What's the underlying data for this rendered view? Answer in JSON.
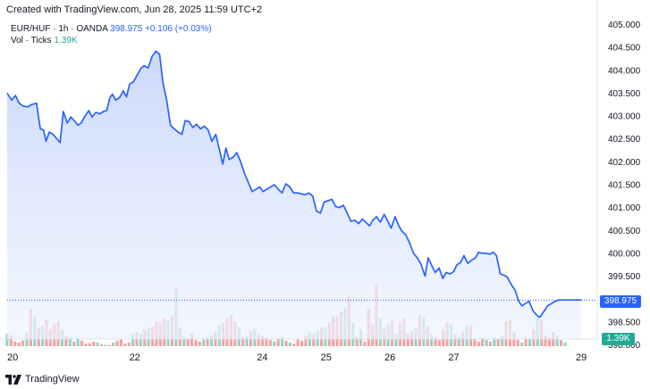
{
  "header": {
    "created_text": "Created with TradingView.com, Jun 28, 2025 11:59 UTC+2"
  },
  "legend": {
    "symbol": "EUR/HUF · 1h · OANDA",
    "price": "398.975",
    "change": "+0.106 (+0.03%)",
    "volume_label": "Vol · Ticks",
    "volume_value": "1.39K"
  },
  "badges": {
    "last_price": "398.975",
    "last_volume": "1.39K"
  },
  "footer": {
    "brand": "TradingView",
    "logo_icon": "tradingview-logo-icon"
  },
  "colors": {
    "line": "#2962ff",
    "area_top": "#c9d7fb",
    "up_volume": "#8fd4c9",
    "down_volume": "#f2a3a3",
    "last_price_badge": "#2962ff",
    "volume_badge": "#22ab94"
  },
  "chart_data": {
    "type": "area",
    "ylim": [
      397.95,
      405.05
    ],
    "x_range": [
      20.0,
      29.25
    ],
    "x_ticks": [
      {
        "value": 20,
        "label": "20"
      },
      {
        "value": 22,
        "label": "22"
      },
      {
        "value": 24,
        "label": "24"
      },
      {
        "value": 25,
        "label": "25"
      },
      {
        "value": 26,
        "label": "26"
      },
      {
        "value": 27,
        "label": "27"
      },
      {
        "value": 29,
        "label": "29"
      }
    ],
    "y_ticks": [
      "405.000",
      "404.500",
      "404.000",
      "403.500",
      "403.000",
      "402.500",
      "402.000",
      "401.500",
      "401.000",
      "400.500",
      "400.000",
      "399.500",
      "398.500",
      "398.000"
    ],
    "series": [
      {
        "name": "EUR/HUF",
        "x": [
          20.0,
          20.07,
          20.13,
          20.19,
          20.25,
          20.32,
          20.38,
          20.46,
          20.52,
          20.57,
          20.61,
          20.66,
          20.72,
          20.78,
          20.83,
          20.88,
          20.94,
          21.0,
          21.05,
          21.11,
          21.16,
          21.22,
          21.28,
          21.33,
          21.39,
          21.45,
          21.51,
          21.56,
          21.61,
          21.65,
          21.7,
          21.76,
          21.82,
          21.87,
          21.92,
          21.98,
          22.04,
          22.1,
          22.15,
          22.21,
          22.27,
          22.33,
          22.39,
          22.44,
          22.5,
          22.56,
          22.62,
          22.68,
          22.74,
          22.79,
          22.85,
          22.91,
          22.97,
          23.03,
          23.09,
          23.15,
          23.21,
          23.27,
          23.33,
          23.38,
          23.43,
          23.48,
          23.54,
          23.6,
          23.66,
          23.72,
          23.78,
          23.84,
          23.9,
          23.96,
          24.01,
          24.07,
          24.13,
          24.19,
          24.25,
          24.31,
          24.37,
          24.43,
          24.49,
          24.55,
          24.61,
          24.67,
          24.73,
          24.79,
          24.85,
          24.91,
          24.97,
          25.03,
          25.09,
          25.15,
          25.21,
          25.27,
          25.33,
          25.39,
          25.45,
          25.51,
          25.57,
          25.62,
          25.68,
          25.73,
          25.79,
          25.85,
          25.91,
          25.96,
          26.02,
          26.08,
          26.14,
          26.19,
          26.25,
          26.31,
          26.37,
          26.43,
          26.49,
          26.55,
          26.6,
          26.65,
          26.71,
          26.77,
          26.83,
          26.88,
          26.94,
          27.0,
          27.05,
          27.11,
          27.16,
          27.22,
          27.28,
          27.34,
          27.39,
          27.45,
          27.51,
          27.56,
          27.62,
          27.67,
          27.73,
          27.79,
          27.84,
          27.9,
          27.96,
          28.02,
          28.07,
          28.12,
          28.18,
          28.24,
          28.3,
          28.35,
          28.41,
          28.47,
          28.53,
          28.59,
          28.65,
          28.71,
          28.76,
          28.82,
          28.88,
          28.94,
          29.0
        ],
        "values": [
          403.5,
          403.35,
          403.45,
          403.28,
          403.22,
          403.2,
          403.25,
          403.28,
          402.72,
          402.7,
          402.45,
          402.65,
          402.6,
          402.5,
          402.42,
          403.1,
          402.85,
          402.98,
          402.9,
          402.8,
          402.85,
          403.0,
          403.12,
          402.98,
          403.08,
          403.05,
          403.1,
          403.12,
          403.4,
          403.48,
          403.35,
          403.4,
          403.55,
          403.42,
          403.7,
          403.75,
          403.9,
          404.05,
          404.1,
          404.05,
          404.3,
          404.42,
          404.35,
          403.75,
          403.35,
          402.8,
          402.72,
          402.65,
          402.6,
          402.9,
          402.88,
          402.75,
          402.82,
          402.72,
          402.78,
          402.7,
          402.45,
          402.6,
          402.25,
          401.95,
          402.3,
          402.05,
          402.1,
          402.2,
          402.0,
          401.75,
          401.55,
          401.35,
          401.4,
          401.45,
          401.35,
          401.4,
          401.45,
          401.5,
          401.4,
          401.32,
          401.52,
          401.45,
          401.32,
          401.32,
          401.3,
          401.28,
          401.32,
          401.25,
          400.92,
          400.88,
          401.12,
          401.15,
          401.18,
          401.02,
          401.0,
          401.05,
          400.88,
          400.7,
          400.72,
          400.65,
          400.75,
          400.68,
          400.6,
          400.72,
          400.8,
          400.68,
          400.85,
          400.72,
          400.55,
          400.8,
          400.6,
          400.48,
          400.4,
          400.22,
          400.0,
          399.9,
          399.75,
          399.5,
          399.9,
          399.75,
          399.58,
          399.68,
          399.45,
          399.58,
          399.55,
          399.6,
          399.75,
          399.8,
          399.95,
          399.78,
          399.85,
          399.9,
          400.02,
          400.0,
          400.0,
          399.98,
          400.02,
          399.95,
          399.55,
          399.52,
          399.48,
          399.32,
          399.2,
          398.95,
          398.85,
          398.9,
          398.95,
          398.75,
          398.65,
          398.6,
          398.72,
          398.85,
          398.9,
          398.95,
          398.98,
          398.98,
          398.98,
          398.98,
          398.98,
          398.98,
          398.98
        ]
      }
    ],
    "volume": {
      "name": "Vol · Ticks",
      "max": 260,
      "values": [
        40,
        35,
        15,
        12,
        18,
        45,
        120,
        95,
        60,
        65,
        85,
        55,
        70,
        80,
        55,
        35,
        30,
        15,
        22,
        18,
        8,
        10,
        14,
        12,
        6,
        5,
        4,
        12,
        18,
        25,
        8,
        12,
        40,
        45,
        40,
        55,
        60,
        62,
        80,
        75,
        90,
        85,
        98,
        190,
        60,
        30,
        25,
        40,
        20,
        15,
        22,
        28,
        35,
        48,
        70,
        75,
        90,
        100,
        80,
        60,
        30,
        35,
        50,
        55,
        40,
        32,
        28,
        20,
        15,
        22,
        30,
        18,
        12,
        8,
        22,
        18,
        35,
        45,
        40,
        50,
        62,
        60,
        75,
        95,
        100,
        110,
        125,
        160,
        75,
        30,
        55,
        15,
        120,
        70,
        200,
        90,
        60,
        70,
        85,
        40,
        75,
        90,
        40,
        48,
        60,
        100,
        95,
        65,
        40,
        30,
        20,
        55,
        80,
        70,
        40,
        30,
        45,
        65,
        70,
        22,
        15,
        25,
        20,
        15,
        30,
        25,
        35,
        80,
        85,
        45,
        20,
        12,
        30,
        25,
        55,
        95,
        85,
        35,
        28,
        45,
        35,
        20,
        12
      ]
    }
  }
}
